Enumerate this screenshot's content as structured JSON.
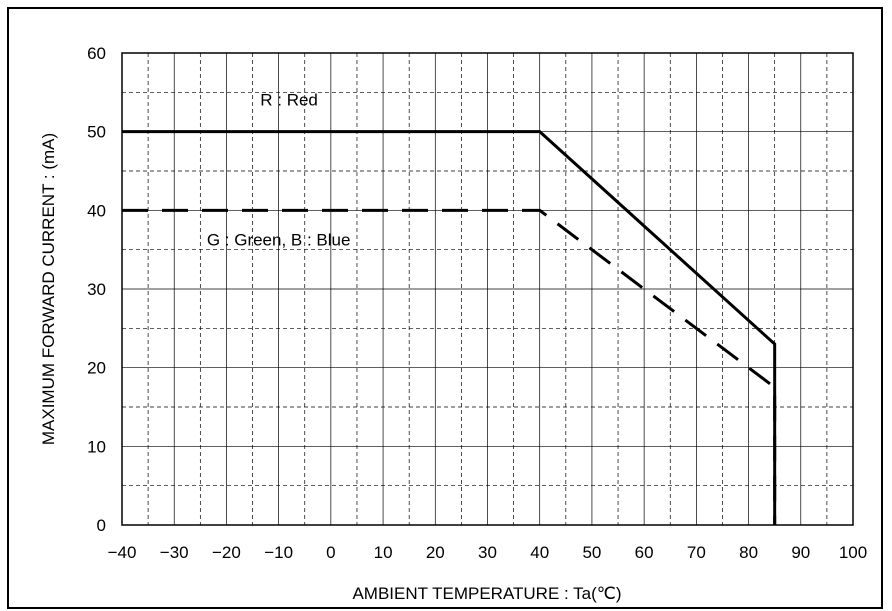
{
  "chart_data": {
    "type": "line",
    "xlabel": "AMBIENT TEMPERATURE : Ta(℃)",
    "ylabel": "MAXIMUM FORWARD CURRENT : (mA)",
    "xlim": [
      -40,
      100
    ],
    "ylim": [
      0,
      60
    ],
    "xticks": [
      -40,
      -30,
      -20,
      -10,
      0,
      10,
      20,
      30,
      40,
      50,
      60,
      70,
      80,
      90,
      100
    ],
    "yticks": [
      0,
      10,
      20,
      30,
      40,
      50,
      60
    ],
    "x_minor_step": 5,
    "y_minor_step": 5,
    "grid": true,
    "series": [
      {
        "name": "R : Red",
        "style": "solid",
        "color": "#000000",
        "points": [
          [
            -40,
            50
          ],
          [
            40,
            50
          ],
          [
            85,
            23
          ],
          [
            85,
            0
          ]
        ]
      },
      {
        "name": "G : Green, B : Blue",
        "style": "dashed",
        "color": "#000000",
        "points": [
          [
            -40,
            40
          ],
          [
            40,
            40
          ],
          [
            85,
            17.5
          ],
          [
            85,
            0
          ]
        ]
      }
    ],
    "annotations": [
      {
        "text": "R : Red",
        "x": -8,
        "y": 53.3
      },
      {
        "text": "G : Green, B : Blue",
        "x": -10,
        "y": 35.5
      }
    ]
  }
}
